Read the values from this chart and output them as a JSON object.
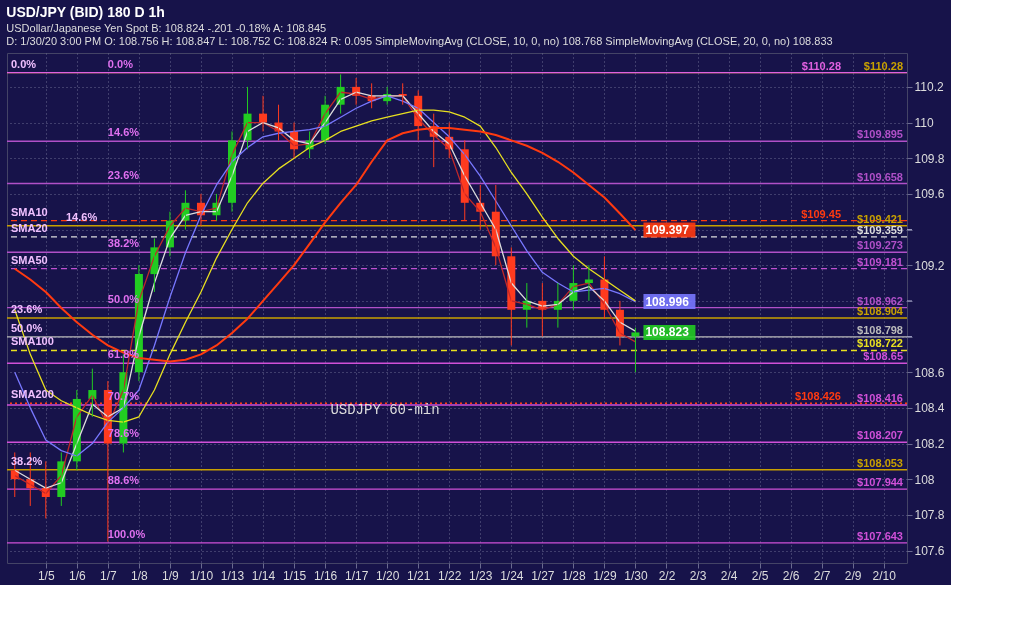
{
  "chart_data": {
    "type": "candlestick",
    "title": "USD/JPY (BID) 180 D 1h",
    "subtitle": [
      "USDollar/Japanese Yen Spot   B: 108.824   -.201   -0.18%   A: 108.845",
      "D: 1/30/20 3:00 PM   O: 108.756   H: 108.847   L: 108.752   C: 108.824   R: 0.095   SimpleMovingAvg (CLOSE, 10, 0, no) 108.768   SimpleMovingAvg (CLOSE, 20, 0, no) 108.833"
    ],
    "categories": [
      null,
      null,
      "1/5",
      null,
      "1/6",
      null,
      "1/7",
      null,
      "1/8",
      null,
      "1/9",
      null,
      "1/10",
      null,
      "1/13",
      null,
      "1/14",
      null,
      "1/15",
      null,
      "1/16",
      null,
      "1/17",
      null,
      "1/20",
      null,
      "1/21",
      null,
      "1/22",
      null,
      "1/23",
      null,
      "1/24",
      null,
      "1/27",
      null,
      "1/28",
      null,
      "1/29",
      null,
      "1/30",
      null,
      "2/2",
      null,
      "2/3",
      null,
      "2/4",
      null,
      "2/5",
      null,
      "2/6",
      null,
      "2/7",
      null,
      "2/9",
      null,
      "2/10",
      null
    ],
    "ohlc": [
      [
        108.05,
        108.15,
        107.9,
        108.0
      ],
      [
        108.0,
        108.15,
        107.85,
        107.95
      ],
      [
        107.95,
        108.1,
        107.78,
        107.9
      ],
      [
        107.9,
        108.15,
        107.85,
        108.1
      ],
      [
        108.1,
        108.5,
        108.05,
        108.45
      ],
      [
        108.45,
        108.62,
        108.35,
        108.5
      ],
      [
        108.5,
        108.55,
        107.65,
        108.2
      ],
      [
        108.2,
        108.7,
        108.15,
        108.6
      ],
      [
        108.6,
        109.2,
        108.55,
        109.15
      ],
      [
        109.15,
        109.35,
        109.05,
        109.3
      ],
      [
        109.3,
        109.5,
        109.25,
        109.45
      ],
      [
        109.45,
        109.62,
        109.4,
        109.55
      ],
      [
        109.55,
        109.6,
        109.42,
        109.48
      ],
      [
        109.48,
        109.6,
        109.45,
        109.55
      ],
      [
        109.55,
        109.95,
        109.5,
        109.9
      ],
      [
        109.9,
        110.2,
        109.85,
        110.05
      ],
      [
        110.05,
        110.15,
        109.95,
        110.0
      ],
      [
        110.0,
        110.1,
        109.9,
        109.95
      ],
      [
        109.95,
        110.0,
        109.8,
        109.85
      ],
      [
        109.85,
        109.95,
        109.8,
        109.9
      ],
      [
        109.9,
        110.15,
        109.88,
        110.1
      ],
      [
        110.1,
        110.27,
        110.05,
        110.2
      ],
      [
        110.2,
        110.25,
        110.1,
        110.15
      ],
      [
        110.15,
        110.22,
        110.08,
        110.12
      ],
      [
        110.12,
        110.2,
        110.1,
        110.16
      ],
      [
        110.16,
        110.22,
        110.1,
        110.15
      ],
      [
        110.15,
        110.18,
        109.9,
        109.98
      ],
      [
        109.98,
        110.05,
        109.75,
        109.92
      ],
      [
        109.92,
        110.0,
        109.8,
        109.85
      ],
      [
        109.85,
        109.9,
        109.45,
        109.55
      ],
      [
        109.55,
        109.65,
        109.4,
        109.5
      ],
      [
        109.5,
        109.65,
        109.2,
        109.25
      ],
      [
        109.25,
        109.3,
        108.75,
        108.95
      ],
      [
        108.95,
        109.1,
        108.85,
        109.0
      ],
      [
        109.0,
        109.1,
        108.8,
        108.95
      ],
      [
        108.95,
        109.1,
        108.85,
        109.0
      ],
      [
        109.0,
        109.2,
        108.95,
        109.1
      ],
      [
        109.1,
        109.2,
        109.0,
        109.12
      ],
      [
        109.12,
        109.25,
        108.9,
        108.95
      ],
      [
        108.95,
        109.0,
        108.75,
        108.8
      ],
      [
        108.8,
        108.85,
        108.6,
        108.823
      ],
      null,
      null,
      null,
      null,
      null,
      null,
      null,
      null,
      null,
      null,
      null,
      null,
      null,
      null,
      null,
      null,
      null
    ],
    "colors": [
      "#ff3b1f",
      "#ff3b1f",
      "#ff3b1f",
      "#22cc22",
      "#22cc22",
      "#22cc22",
      "#ff3b1f",
      "#22cc22",
      "#22cc22",
      "#22cc22",
      "#22cc22",
      "#22cc22",
      "#ff3b1f",
      "#22cc22",
      "#22cc22",
      "#22cc22",
      "#ff3b1f",
      "#ff3b1f",
      "#ff3b1f",
      "#22cc22",
      "#22cc22",
      "#22cc22",
      "#ff3b1f",
      "#ff3b1f",
      "#22cc22",
      "#ff3b1f",
      "#ff3b1f",
      "#ff3b1f",
      "#ff3b1f",
      "#ff3b1f",
      "#ff3b1f",
      "#ff3b1f",
      "#ff3b1f",
      "#22cc22",
      "#ff3b1f",
      "#22cc22",
      "#22cc22",
      "#22cc22",
      "#ff3b1f",
      "#ff3b1f",
      "#22cc22",
      null,
      null,
      null,
      null,
      null,
      null,
      null,
      null,
      null,
      null,
      null,
      null,
      null,
      null,
      null,
      null,
      null
    ],
    "value_labels": [
      null,
      null,
      null,
      null,
      null,
      null,
      null,
      null,
      null,
      null,
      null,
      null,
      null,
      null,
      null,
      null,
      null,
      null,
      null,
      null,
      null,
      null,
      null,
      null,
      null,
      null,
      null,
      null,
      null,
      null,
      null,
      null,
      null,
      null,
      null,
      null,
      null,
      null,
      null,
      null,
      "108.823",
      null,
      null,
      null,
      null,
      null,
      null,
      null,
      null,
      null,
      null,
      null,
      null,
      null,
      null,
      null,
      null,
      null
    ],
    "series": [
      {
        "type": "line",
        "color": "#c0282a",
        "values": [
          108.02,
          107.97,
          107.92,
          108.02,
          108.35,
          108.47,
          108.3,
          108.5,
          109.0,
          109.25,
          109.42,
          109.52,
          109.5,
          109.52,
          109.82,
          110.0,
          110.0,
          109.95,
          109.87,
          109.88,
          110.05,
          110.17,
          110.16,
          110.13,
          110.15,
          110.15,
          110.02,
          109.93,
          109.85,
          109.6,
          109.5,
          109.3,
          109.0,
          108.98,
          108.95,
          108.98,
          109.08,
          109.1,
          108.98,
          108.82,
          108.77,
          null,
          null,
          null,
          null,
          null,
          null,
          null,
          null,
          null,
          null,
          null,
          null,
          null,
          null,
          null,
          null,
          null
        ]
      },
      {
        "type": "line",
        "color": "#dddddd",
        "values": [
          108.05,
          108.0,
          107.95,
          107.98,
          108.2,
          108.42,
          108.35,
          108.4,
          108.8,
          109.1,
          109.35,
          109.48,
          109.5,
          109.5,
          109.7,
          109.95,
          110.0,
          109.97,
          109.9,
          109.88,
          110.0,
          110.13,
          110.17,
          110.15,
          110.15,
          110.15,
          110.05,
          109.95,
          109.88,
          109.7,
          109.55,
          109.4,
          109.1,
          109.0,
          108.97,
          108.98,
          109.05,
          109.08,
          109.0,
          108.88,
          108.83,
          null,
          null,
          null,
          null,
          null,
          null,
          null,
          null,
          null,
          null,
          null,
          null,
          null,
          null,
          null,
          null,
          null
        ]
      },
      {
        "type": "line",
        "color": "#7878ff",
        "values": [
          108.6,
          108.4,
          108.22,
          108.16,
          108.13,
          108.2,
          108.32,
          108.4,
          108.5,
          108.75,
          109.02,
          109.27,
          109.48,
          109.65,
          109.78,
          109.86,
          109.92,
          109.94,
          109.95,
          109.96,
          109.98,
          110.03,
          110.08,
          110.12,
          110.15,
          110.12,
          110.08,
          110.0,
          109.92,
          109.82,
          109.7,
          109.56,
          109.42,
          109.28,
          109.16,
          109.1,
          109.05,
          109.06,
          109.07,
          109.04,
          108.996,
          null,
          null,
          null,
          null,
          null,
          null,
          null,
          null,
          null,
          null,
          null,
          null,
          null,
          null,
          null,
          null,
          null
        ],
        "value_labels": [
          null,
          null,
          null,
          null,
          null,
          null,
          null,
          null,
          null,
          null,
          null,
          null,
          null,
          null,
          null,
          null,
          null,
          null,
          null,
          null,
          null,
          null,
          null,
          null,
          null,
          null,
          null,
          null,
          null,
          null,
          null,
          null,
          null,
          null,
          null,
          null,
          null,
          null,
          null,
          null,
          "108.996",
          null,
          null,
          null,
          null,
          null,
          null,
          null,
          null,
          null,
          null,
          null,
          null,
          null,
          null,
          null,
          null,
          null
        ]
      },
      {
        "type": "line",
        "color": "#e8e020",
        "values": [
          108.95,
          108.7,
          108.5,
          108.44,
          108.4,
          108.36,
          108.33,
          108.32,
          108.35,
          108.5,
          108.7,
          108.88,
          109.05,
          109.24,
          109.4,
          109.55,
          109.66,
          109.74,
          109.8,
          109.86,
          109.9,
          109.95,
          109.98,
          110.01,
          110.03,
          110.05,
          110.07,
          110.07,
          110.06,
          110.03,
          109.98,
          109.86,
          109.72,
          109.6,
          109.47,
          109.35,
          109.25,
          109.18,
          109.12,
          109.06,
          109.0,
          null,
          null,
          null,
          null,
          null,
          null,
          null,
          null,
          null,
          null,
          null,
          null,
          null,
          null,
          null,
          null,
          null
        ]
      },
      {
        "type": "line",
        "color": "#ff3a10",
        "values": [
          109.18,
          109.12,
          109.05,
          108.96,
          108.88,
          108.81,
          108.75,
          108.71,
          108.68,
          108.67,
          108.66,
          108.67,
          108.7,
          108.75,
          108.82,
          108.9,
          109.0,
          109.1,
          109.2,
          109.32,
          109.44,
          109.55,
          109.65,
          109.78,
          109.9,
          109.94,
          109.96,
          109.97,
          109.97,
          109.96,
          109.95,
          109.93,
          109.9,
          109.87,
          109.83,
          109.78,
          109.72,
          109.65,
          109.58,
          109.49,
          109.397,
          null,
          null,
          null,
          null,
          null,
          null,
          null,
          null,
          null,
          null,
          null,
          null,
          null,
          null,
          null,
          null,
          null
        ],
        "value_labels": [
          null,
          null,
          null,
          null,
          null,
          null,
          null,
          null,
          null,
          null,
          null,
          null,
          null,
          null,
          null,
          null,
          null,
          null,
          null,
          null,
          null,
          null,
          null,
          null,
          null,
          null,
          null,
          null,
          null,
          null,
          null,
          null,
          null,
          null,
          null,
          null,
          null,
          null,
          null,
          null,
          "109.397",
          null,
          null,
          null,
          null,
          null,
          null,
          null,
          null,
          null,
          null,
          null,
          null,
          null,
          null,
          null,
          null,
          null
        ]
      }
    ],
    "ylim": [
      107.53,
      110.39
    ],
    "yticks": [
      107.6,
      107.8,
      108,
      108.2,
      108.4,
      108.6,
      {
        "value": 108.8,
        "label": null
      },
      {
        "value": 109,
        "label": null
      },
      109.2,
      {
        "value": 109.4,
        "label": null
      },
      109.6,
      109.8,
      110,
      110.2
    ],
    "grid": true,
    "ref_lines": [
      {
        "axis": "y",
        "value": 110.28,
        "label": "$110.28",
        "color": "#c8a000",
        "line_style": "solid"
      },
      {
        "axis": "y",
        "value": 110.28,
        "label": "$110.28",
        "color": "#e060e0",
        "line_style": "solid"
      },
      {
        "axis": "y",
        "value": 109.895,
        "label": "$109.895",
        "color": "#b050c8",
        "line_style": "solid"
      },
      {
        "axis": "y",
        "value": 109.658,
        "label": "$109.658",
        "color": "#b050c8",
        "line_style": "solid"
      },
      {
        "axis": "y",
        "value": 109.45,
        "label": "$109.45",
        "color": "#ff3a10",
        "line_style": "dashed"
      },
      {
        "axis": "y",
        "value": 109.421,
        "label": "$109.421",
        "color": "#c8a000",
        "line_style": "solid"
      },
      {
        "axis": "y",
        "value": 109.359,
        "label": "$109.359",
        "color": "#dddddd",
        "line_style": "dashed"
      },
      {
        "axis": "y",
        "value": 109.273,
        "label": "$109.273",
        "color": "#b050c8",
        "line_style": "solid"
      },
      {
        "axis": "y",
        "value": 109.181,
        "label": "$109.181",
        "color": "#c050d0",
        "line_style": "dashed"
      },
      {
        "axis": "y",
        "value": 108.962,
        "label": "$108.962",
        "color": "#b050c8",
        "line_style": "solid"
      },
      {
        "axis": "y",
        "value": 108.904,
        "label": "$108.904",
        "color": "#c8a000",
        "line_style": "solid"
      },
      {
        "axis": "y",
        "value": 108.798,
        "label": "$108.798",
        "color": "#bbbbbb",
        "line_style": "solid"
      },
      {
        "axis": "y",
        "value": 108.722,
        "label": "$108.722",
        "color": "#e8e020",
        "line_style": "dashed"
      },
      {
        "axis": "y",
        "value": 108.65,
        "label": "$108.65",
        "color": "#d050d8",
        "line_style": "solid"
      },
      {
        "axis": "y",
        "value": 108.426,
        "label": "$108.426",
        "color": "#ff3a10",
        "line_style": "dotted"
      },
      {
        "axis": "y",
        "value": 108.416,
        "label": "$108.416",
        "color": "#d050d8",
        "line_style": "solid"
      },
      {
        "axis": "y",
        "value": 108.207,
        "label": "$108.207",
        "color": "#d050d8",
        "line_style": "solid"
      },
      {
        "axis": "y",
        "value": 108.053,
        "label": "$108.053",
        "color": "#c8a000",
        "line_style": "solid"
      },
      {
        "axis": "y",
        "value": 107.944,
        "label": "$107.944",
        "color": "#d050d8",
        "line_style": "solid"
      },
      {
        "axis": "y",
        "value": 107.643,
        "label": "$107.643",
        "color": "#d050d8",
        "line_style": "solid"
      }
    ],
    "annotations": [
      {
        "text": "0.0%",
        "y": 110.28
      },
      {
        "text": "SMA10",
        "y": 109.45
      },
      {
        "text": "14.6%",
        "y": 109.421
      },
      {
        "text": "SMA20",
        "y": 109.359
      },
      {
        "text": "SMA50",
        "y": 109.181
      },
      {
        "text": "23.6%",
        "y": 108.904
      },
      {
        "text": "50.0%",
        "y": 108.798
      },
      {
        "text": "SMA100",
        "y": 108.722
      },
      {
        "text": "SMA200",
        "y": 108.426
      },
      {
        "text": "38.2%",
        "y": 108.053
      },
      {
        "text": "0.0%",
        "x": "1/7",
        "y": 110.28
      },
      {
        "text": "14.6%",
        "x": "1/7",
        "y": 109.895
      },
      {
        "text": "23.6%",
        "x": "1/7",
        "y": 109.658
      },
      {
        "text": "38.2%",
        "x": "1/7",
        "y": 109.273
      },
      {
        "text": "50.0%",
        "x": "1/7",
        "y": 108.962
      },
      {
        "text": "61.8%",
        "x": "1/7",
        "y": 108.65
      },
      {
        "text": "70.7%",
        "x": "1/7",
        "y": 108.416
      },
      {
        "text": "78.6%",
        "x": "1/7",
        "y": 108.207
      },
      {
        "text": "88.6%",
        "x": "1/7",
        "y": 107.944
      },
      {
        "text": "100.0%",
        "x": "1/7",
        "y": 107.643
      },
      "USDJPY 60-min"
    ]
  }
}
